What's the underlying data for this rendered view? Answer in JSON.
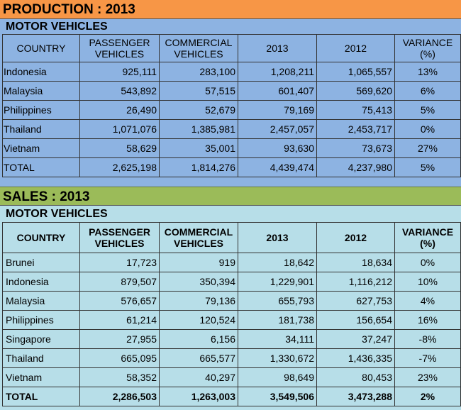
{
  "production": {
    "title": "PRODUCTION : 2013",
    "subtitle": "MOTOR VEHICLES",
    "headers": [
      "COUNTRY",
      "PASSENGER VEHICLES",
      "COMMERCIAL VEHICLES",
      "2013",
      "2012",
      "VARIANCE (%)"
    ],
    "rows": [
      [
        "Indonesia",
        "925,111",
        "283,100",
        "1,208,211",
        "1,065,557",
        "13%"
      ],
      [
        "Malaysia",
        "543,892",
        "57,515",
        "601,407",
        "569,620",
        "6%"
      ],
      [
        "Philippines",
        "26,490",
        "52,679",
        "79,169",
        "75,413",
        "5%"
      ],
      [
        "Thailand",
        "1,071,076",
        "1,385,981",
        "2,457,057",
        "2,453,717",
        "0%"
      ],
      [
        "Vietnam",
        "58,629",
        "35,001",
        "93,630",
        "73,673",
        "27%"
      ],
      [
        "TOTAL",
        "2,625,198",
        "1,814,276",
        "4,439,474",
        "4,237,980",
        "5%"
      ]
    ]
  },
  "sales": {
    "title": "SALES : 2013",
    "subtitle": "MOTOR VEHICLES",
    "headers": [
      "COUNTRY",
      "PASSENGER VEHICLES",
      "COMMERCIAL VEHICLES",
      "2013",
      "2012",
      "VARIANCE (%)"
    ],
    "rows": [
      [
        "Brunei",
        "17,723",
        "919",
        "18,642",
        "18,634",
        "0%"
      ],
      [
        "Indonesia",
        "879,507",
        "350,394",
        "1,229,901",
        "1,116,212",
        "10%"
      ],
      [
        "Malaysia",
        "576,657",
        "79,136",
        "655,793",
        "627,753",
        "4%"
      ],
      [
        "Philippines",
        "61,214",
        "120,524",
        "181,738",
        "156,654",
        "16%"
      ],
      [
        "Singapore",
        "27,955",
        "6,156",
        "34,111",
        "37,247",
        "-8%"
      ],
      [
        "Thailand",
        "665,095",
        "665,577",
        "1,330,672",
        "1,436,335",
        "-7%"
      ],
      [
        "Vietnam",
        "58,352",
        "40,297",
        "98,649",
        "80,453",
        "23%"
      ],
      [
        "TOTAL",
        "2,286,503",
        "1,263,003",
        "3,549,506",
        "3,473,288",
        "2%"
      ]
    ]
  },
  "colors": {
    "production_band": "#f79646",
    "production_bg": "#8db3e2",
    "sales_band": "#9bbb59",
    "sales_bg": "#b7dee8"
  }
}
